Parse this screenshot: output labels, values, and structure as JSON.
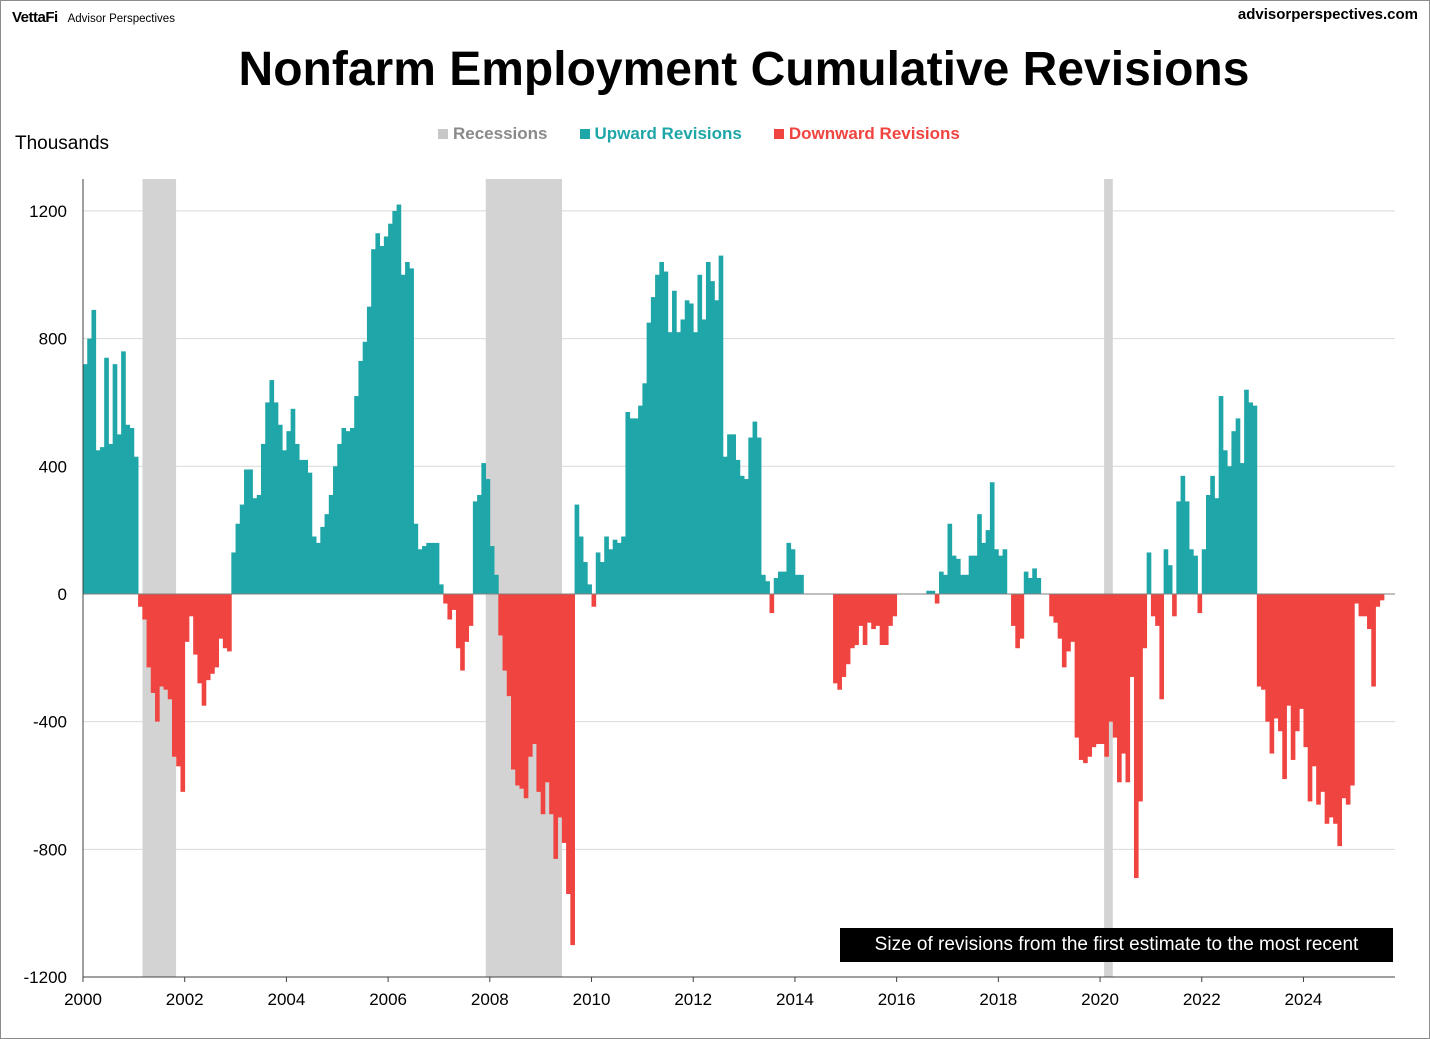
{
  "header": {
    "brand_logo": "VettaFi",
    "brand_sub": "Advisor Perspectives",
    "site": "advisorperspectives.com"
  },
  "colors": {
    "up": "#1fa6a8",
    "down": "#f04440",
    "recession": "#d3d3d3"
  },
  "chart_data": {
    "type": "bar",
    "title": "Nonfarm Employment Cumulative Revisions",
    "ylabel": "Thousands",
    "xlabel": "",
    "ylim": [
      -1200,
      1300
    ],
    "yticks": [
      1200,
      800,
      400,
      0,
      -400,
      -800,
      -1200
    ],
    "ytick_labels": [
      "1200",
      "800",
      "400",
      "0",
      "-400",
      "-800",
      "-1200"
    ],
    "xlim": [
      2000,
      2025.8
    ],
    "xticks": [
      2000,
      2002,
      2004,
      2006,
      2008,
      2010,
      2012,
      2014,
      2016,
      2018,
      2020,
      2022,
      2024
    ],
    "xtick_labels": [
      "2000",
      "2002",
      "2004",
      "2006",
      "2008",
      "2010",
      "2012",
      "2014",
      "2016",
      "2018",
      "2020",
      "2022",
      "2024"
    ],
    "grid": true,
    "legend": {
      "placement": "top-center",
      "entries": [
        {
          "label": "Recessions",
          "color": "#c8c8c8"
        },
        {
          "label": "Upward Revisions",
          "color": "#1fa6a8"
        },
        {
          "label": "Downward Revisions",
          "color": "#f04440"
        }
      ]
    },
    "recessions": [
      [
        2001.17,
        2001.83
      ],
      [
        2007.92,
        2009.42
      ],
      [
        2020.08,
        2020.25
      ]
    ],
    "annotation": "Size of revisions from the first estimate to the most recent",
    "start": [
      2000,
      1
    ],
    "values": [
      720,
      800,
      890,
      450,
      460,
      740,
      470,
      720,
      500,
      760,
      530,
      520,
      430,
      -40,
      -80,
      -230,
      -310,
      -400,
      -290,
      -300,
      -330,
      -510,
      -540,
      -620,
      -150,
      -70,
      -190,
      -280,
      -350,
      -270,
      -250,
      -230,
      -140,
      -170,
      -180,
      130,
      220,
      280,
      390,
      390,
      300,
      310,
      470,
      600,
      670,
      600,
      530,
      450,
      510,
      580,
      470,
      420,
      420,
      380,
      180,
      160,
      210,
      250,
      310,
      400,
      470,
      520,
      510,
      520,
      620,
      730,
      790,
      900,
      1080,
      1130,
      1090,
      1120,
      1160,
      1200,
      1220,
      1000,
      1040,
      1020,
      220,
      140,
      150,
      160,
      160,
      160,
      30,
      -30,
      -80,
      -50,
      -170,
      -240,
      -150,
      -100,
      290,
      310,
      410,
      360,
      150,
      60,
      -130,
      -240,
      -320,
      -550,
      -600,
      -610,
      -640,
      -510,
      -470,
      -620,
      -690,
      -590,
      -690,
      -830,
      -700,
      -780,
      -940,
      -1100,
      280,
      180,
      100,
      30,
      -40,
      130,
      100,
      180,
      140,
      170,
      160,
      180,
      570,
      550,
      550,
      590,
      660,
      850,
      930,
      1000,
      1040,
      1010,
      820,
      950,
      820,
      860,
      920,
      910,
      820,
      1000,
      860,
      1040,
      980,
      920,
      1060,
      430,
      500,
      500,
      420,
      370,
      360,
      490,
      540,
      490,
      60,
      40,
      -60,
      50,
      70,
      70,
      160,
      140,
      60,
      60,
      0,
      0,
      0,
      0,
      0,
      0,
      0,
      -280,
      -300,
      -260,
      -220,
      -170,
      -160,
      -100,
      -160,
      -90,
      -110,
      -100,
      -160,
      -160,
      -100,
      -70,
      0,
      0,
      0,
      0,
      0,
      0,
      0,
      10,
      10,
      -30,
      70,
      60,
      220,
      120,
      110,
      60,
      60,
      120,
      120,
      250,
      160,
      200,
      350,
      140,
      120,
      140,
      0,
      -100,
      -170,
      -140,
      70,
      50,
      80,
      50,
      0,
      0,
      -70,
      -90,
      -140,
      -230,
      -180,
      -150,
      -450,
      -520,
      -530,
      -510,
      -480,
      -470,
      -470,
      -510,
      -400,
      -450,
      -590,
      -500,
      -590,
      -260,
      -890,
      -650,
      -170,
      130,
      -70,
      -100,
      -330,
      140,
      90,
      -70,
      290,
      370,
      290,
      140,
      120,
      -60,
      140,
      310,
      370,
      300,
      620,
      450,
      400,
      510,
      550,
      410,
      640,
      600,
      590,
      -290,
      -300,
      -400,
      -500,
      -390,
      -430,
      -580,
      -350,
      -520,
      -430,
      -360,
      -480,
      -650,
      -540,
      -660,
      -620,
      -720,
      -700,
      -720,
      -790,
      -640,
      -660,
      -600,
      -30,
      -70,
      -70,
      -110,
      -290,
      -40,
      -20
    ]
  }
}
